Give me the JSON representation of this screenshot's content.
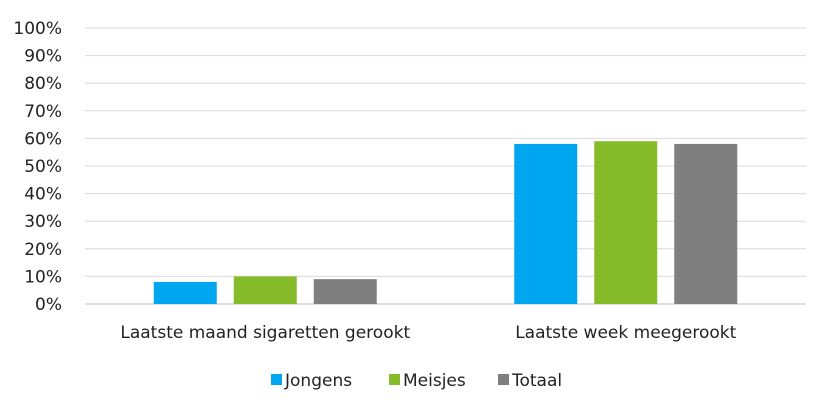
{
  "chart_data": {
    "type": "bar",
    "categories": [
      "Laatste maand sigaretten gerookt",
      "Laatste week meegerookt"
    ],
    "series": [
      {
        "name": "Jongens",
        "values": [
          8,
          58
        ],
        "color": "#00A6F0"
      },
      {
        "name": "Meisjes",
        "values": [
          10,
          59
        ],
        "color": "#86BC2A"
      },
      {
        "name": "Totaal",
        "values": [
          9,
          58
        ],
        "color": "#7F7F7F"
      }
    ],
    "y_ticks": [
      "0%",
      "10%",
      "20%",
      "30%",
      "40%",
      "50%",
      "60%",
      "70%",
      "80%",
      "90%",
      "100%"
    ],
    "ylim": [
      0,
      100
    ],
    "grid": true,
    "legend_position": "bottom",
    "title": "",
    "xlabel": "",
    "ylabel": ""
  }
}
